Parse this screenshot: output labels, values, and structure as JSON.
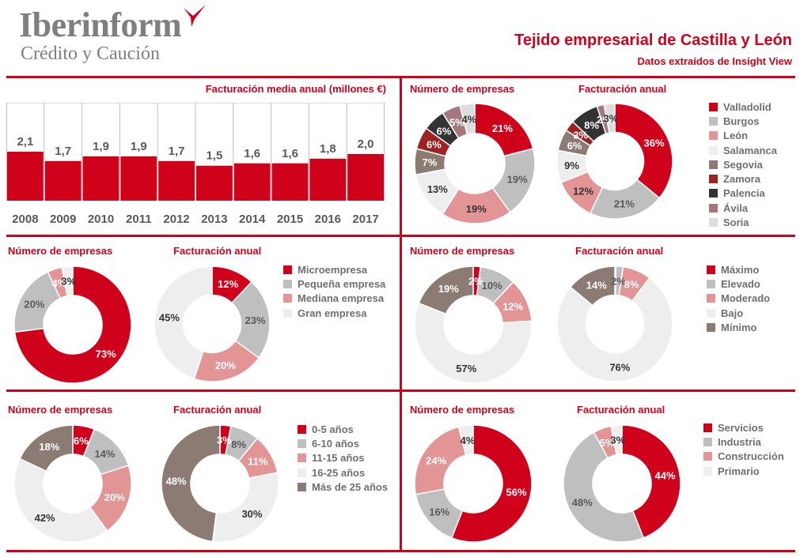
{
  "header": {
    "logo_name": "Iberinform",
    "logo_sub": "Crédito y Caución",
    "title": "Tejido empresarial de Castilla y León",
    "subtitle": "Datos extraídos de Insight View"
  },
  "colors": {
    "accent": "#d0021b",
    "grid": "#bfbfbf",
    "label_dark": "#595959",
    "label_light": "#ffffff"
  },
  "chart_data": [
    {
      "type": "bar",
      "title": "Facturación media anual (millones €)",
      "categories": [
        "2008",
        "2009",
        "2010",
        "2011",
        "2012",
        "2013",
        "2014",
        "2015",
        "2016",
        "2017"
      ],
      "values": [
        2.1,
        1.7,
        1.9,
        1.9,
        1.7,
        1.5,
        1.6,
        1.6,
        1.8,
        2.0
      ],
      "data_labels": [
        "2,1",
        "1,7",
        "1,9",
        "1,9",
        "1,7",
        "1,5",
        "1,6",
        "1,6",
        "1,8",
        "2,0"
      ],
      "ylim": [
        0,
        4.2
      ],
      "grid": "vertical-separators",
      "color": "#d0021b"
    },
    {
      "type": "pie",
      "variant": "donut",
      "title": "Número de empresas",
      "panel": "provincias",
      "labels": [
        "Valladolid",
        "Burgos",
        "León",
        "Salamanca",
        "Segovia",
        "Zamora",
        "Palencia",
        "Ávila",
        "Soria"
      ],
      "values": [
        21,
        19,
        19,
        13,
        7,
        6,
        6,
        5,
        4
      ],
      "colors": [
        "#d0021b",
        "#bfbfbf",
        "#e39494",
        "#eeeeee",
        "#8c7b73",
        "#9e2222",
        "#333333",
        "#a5787e",
        "#dddddd"
      ],
      "label_colors": [
        "#ffffff",
        "#595959",
        "#333333",
        "#333333",
        "#ffffff",
        "#ffffff",
        "#ffffff",
        "#ffffff",
        "#333333"
      ]
    },
    {
      "type": "pie",
      "variant": "donut",
      "title": "Facturación anual",
      "panel": "provincias",
      "labels": [
        "Valladolid",
        "Burgos",
        "León",
        "Salamanca",
        "Segovia",
        "Zamora",
        "Palencia",
        "Ávila",
        "Soria"
      ],
      "values": [
        36,
        21,
        12,
        9,
        6,
        3,
        8,
        2,
        3
      ],
      "colors": [
        "#d0021b",
        "#bfbfbf",
        "#e39494",
        "#eeeeee",
        "#8c7b73",
        "#9e2222",
        "#333333",
        "#a5787e",
        "#dddddd"
      ],
      "label_colors": [
        "#ffffff",
        "#595959",
        "#333333",
        "#333333",
        "#ffffff",
        "#ffffff",
        "#ffffff",
        "#ffffff",
        "#333333"
      ]
    },
    {
      "type": "pie",
      "variant": "donut",
      "title": "Número de empresas",
      "panel": "tamaño",
      "labels": [
        "Microempresa",
        "Pequeña empresa",
        "Mediana empresa",
        "Gran empresa"
      ],
      "values": [
        73,
        20,
        4,
        3
      ],
      "colors": [
        "#d0021b",
        "#bfbfbf",
        "#e39494",
        "#eeeeee"
      ],
      "label_colors": [
        "#ffffff",
        "#595959",
        "#ffffff",
        "#333333"
      ]
    },
    {
      "type": "pie",
      "variant": "donut",
      "title": "Facturación anual",
      "panel": "tamaño",
      "labels": [
        "Microempresa",
        "Pequeña empresa",
        "Mediana empresa",
        "Gran empresa"
      ],
      "values": [
        12,
        23,
        20,
        45
      ],
      "colors": [
        "#d0021b",
        "#bfbfbf",
        "#e39494",
        "#eeeeee"
      ],
      "label_colors": [
        "#ffffff",
        "#595959",
        "#ffffff",
        "#333333"
      ]
    },
    {
      "type": "pie",
      "variant": "donut",
      "title": "Número de empresas",
      "panel": "riesgo",
      "labels": [
        "Máximo",
        "Elevado",
        "Moderado",
        "Bajo",
        "Mínimo"
      ],
      "values": [
        2,
        10,
        12,
        57,
        19
      ],
      "colors": [
        "#d0021b",
        "#bfbfbf",
        "#e39494",
        "#eeeeee",
        "#8c7b73"
      ],
      "label_colors": [
        "#ffffff",
        "#595959",
        "#ffffff",
        "#333333",
        "#ffffff"
      ]
    },
    {
      "type": "pie",
      "variant": "donut",
      "title": "Facturación anual",
      "panel": "riesgo",
      "labels": [
        "Máximo",
        "Elevado",
        "Moderado",
        "Bajo",
        "Mínimo"
      ],
      "values": [
        0.3,
        2,
        8,
        76,
        14
      ],
      "data_labels": [
        "",
        "2%",
        "8%",
        "76%",
        "14%"
      ],
      "colors": [
        "#d0021b",
        "#bfbfbf",
        "#e39494",
        "#eeeeee",
        "#8c7b73"
      ],
      "label_colors": [
        "#ffffff",
        "#595959",
        "#ffffff",
        "#333333",
        "#ffffff"
      ]
    },
    {
      "type": "pie",
      "variant": "donut",
      "title": "Número de empresas",
      "panel": "antigüedad",
      "labels": [
        "0-5 años",
        "6-10 años",
        "11-15 años",
        "16-25 años",
        "Más de 25 años"
      ],
      "values": [
        6,
        14,
        20,
        42,
        18
      ],
      "colors": [
        "#d0021b",
        "#bfbfbf",
        "#e39494",
        "#eeeeee",
        "#8c7b73"
      ],
      "label_colors": [
        "#ffffff",
        "#595959",
        "#ffffff",
        "#333333",
        "#ffffff"
      ]
    },
    {
      "type": "pie",
      "variant": "donut",
      "title": "Facturación anual",
      "panel": "antigüedad",
      "labels": [
        "0-5 años",
        "6-10 años",
        "11-15 años",
        "16-25 años",
        "Más de 25 años"
      ],
      "values": [
        3,
        8,
        11,
        30,
        48
      ],
      "colors": [
        "#d0021b",
        "#bfbfbf",
        "#e39494",
        "#eeeeee",
        "#8c7b73"
      ],
      "label_colors": [
        "#ffffff",
        "#595959",
        "#ffffff",
        "#333333",
        "#ffffff"
      ]
    },
    {
      "type": "pie",
      "variant": "donut",
      "title": "Número de empresas",
      "panel": "sector",
      "labels": [
        "Servicios",
        "Industria",
        "Construcción",
        "Primario"
      ],
      "values": [
        56,
        16,
        24,
        4
      ],
      "colors": [
        "#d0021b",
        "#bfbfbf",
        "#e39494",
        "#eeeeee"
      ],
      "label_colors": [
        "#ffffff",
        "#595959",
        "#ffffff",
        "#333333"
      ]
    },
    {
      "type": "pie",
      "variant": "donut",
      "title": "Facturación anual",
      "panel": "sector",
      "labels": [
        "Servicios",
        "Industria",
        "Construcción",
        "Primario"
      ],
      "values": [
        44,
        48,
        5,
        3
      ],
      "colors": [
        "#d0021b",
        "#bfbfbf",
        "#e39494",
        "#eeeeee"
      ],
      "label_colors": [
        "#ffffff",
        "#595959",
        "#ffffff",
        "#333333"
      ]
    }
  ],
  "legends": [
    {
      "name": "provincias",
      "items": [
        {
          "label": "Valladolid",
          "color": "#d0021b"
        },
        {
          "label": "Burgos",
          "color": "#bfbfbf"
        },
        {
          "label": "León",
          "color": "#e39494"
        },
        {
          "label": "Salamanca",
          "color": "#eeeeee"
        },
        {
          "label": "Segovia",
          "color": "#8c7b73"
        },
        {
          "label": "Zamora",
          "color": "#9e2222"
        },
        {
          "label": "Palencia",
          "color": "#333333"
        },
        {
          "label": "Ávila",
          "color": "#a5787e"
        },
        {
          "label": "Soria",
          "color": "#dddddd"
        }
      ]
    },
    {
      "name": "tamaño",
      "items": [
        {
          "label": "Microempresa",
          "color": "#d0021b"
        },
        {
          "label": "Pequeña empresa",
          "color": "#bfbfbf"
        },
        {
          "label": "Mediana empresa",
          "color": "#e39494"
        },
        {
          "label": "Gran empresa",
          "color": "#eeeeee"
        }
      ]
    },
    {
      "name": "riesgo",
      "items": [
        {
          "label": "Máximo",
          "color": "#d0021b"
        },
        {
          "label": "Elevado",
          "color": "#bfbfbf"
        },
        {
          "label": "Moderado",
          "color": "#e39494"
        },
        {
          "label": "Bajo",
          "color": "#eeeeee"
        },
        {
          "label": "Mínimo",
          "color": "#8c7b73"
        }
      ]
    },
    {
      "name": "antigüedad",
      "items": [
        {
          "label": "0-5 años",
          "color": "#d0021b"
        },
        {
          "label": "6-10 años",
          "color": "#bfbfbf"
        },
        {
          "label": "11-15 años",
          "color": "#e39494"
        },
        {
          "label": "16-25 años",
          "color": "#eeeeee"
        },
        {
          "label": "Más de 25 años",
          "color": "#8c7b73"
        }
      ]
    },
    {
      "name": "sector",
      "items": [
        {
          "label": "Servicios",
          "color": "#d0021b"
        },
        {
          "label": "Industria",
          "color": "#bfbfbf"
        },
        {
          "label": "Construcción",
          "color": "#e39494"
        },
        {
          "label": "Primario",
          "color": "#eeeeee"
        }
      ]
    }
  ]
}
